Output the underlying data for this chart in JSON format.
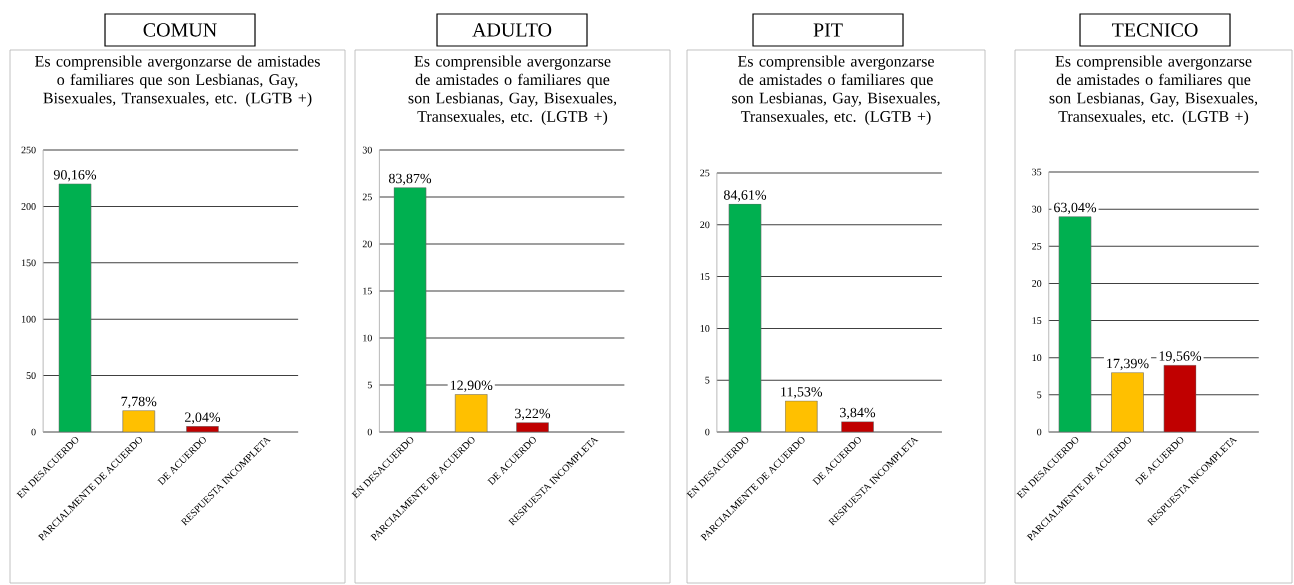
{
  "chart_data": [
    {
      "type": "bar",
      "title": "COMUN",
      "subtitle": "Es comprensible avergonzarse de amistades o familiares que son Lesbianas, Gay, Bisexuales, Transexuales, etc. (LGTB +)",
      "categories": [
        "EN DESACUERDO",
        "PARCIALMENTE DE ACUERDO",
        "DE ACUERDO",
        "RESPUESTA INCOMPLETA"
      ],
      "values": [
        220,
        19,
        5,
        null
      ],
      "colors": [
        "#00b050",
        "#ffc000",
        "#c00000",
        null
      ],
      "ylim": [
        0,
        250
      ],
      "yticks": [
        0,
        50,
        100,
        150,
        200,
        250
      ],
      "grid": "y",
      "annotations": [
        {
          "text": "90,16%",
          "x": "EN DESACUERDO",
          "y": 220
        },
        {
          "text": "7,78%",
          "x": "PARCIALMENTE DE ACUERDO",
          "y": 19
        },
        {
          "text": "2,04%",
          "x": "DE ACUERDO",
          "y": 5
        }
      ]
    },
    {
      "type": "bar",
      "title": "ADULTO",
      "subtitle": "Es comprensible avergonzarse de amistades o familiares que son Lesbianas, Gay, Bisexuales, Transexuales, etc. (LGTB +)",
      "categories": [
        "EN DESACUERDO",
        "PARCIALMENTE DE ACUERDO",
        "DE ACUERDO",
        "RESPUESTA INCOMPLETA"
      ],
      "values": [
        26,
        4,
        1,
        null
      ],
      "colors": [
        "#00b050",
        "#ffc000",
        "#c00000",
        null
      ],
      "ylim": [
        0,
        30
      ],
      "yticks": [
        0,
        5,
        10,
        15,
        20,
        25,
        30
      ],
      "grid": "y",
      "annotations": [
        {
          "text": "83,87%",
          "x": "EN DESACUERDO",
          "y": 26
        },
        {
          "text": "12,90%",
          "x": "PARCIALMENTE DE ACUERDO",
          "y": 4
        },
        {
          "text": "3,22%",
          "x": "DE ACUERDO",
          "y": 1
        }
      ]
    },
    {
      "type": "bar",
      "title": "PIT",
      "subtitle": "Es comprensible avergonzarse de amistades o familiares que son Lesbianas, Gay, Bisexuales, Transexuales, etc. (LGTB +)",
      "categories": [
        "EN DESACUERDO",
        "PARCIALMENTE DE ACUERDO",
        "DE ACUERDO",
        "RESPUESTA INCOMPLETA"
      ],
      "values": [
        22,
        3,
        1,
        null
      ],
      "colors": [
        "#00b050",
        "#ffc000",
        "#c00000",
        null
      ],
      "ylim": [
        0,
        25
      ],
      "yticks": [
        0,
        5,
        10,
        15,
        20,
        25
      ],
      "grid": "y",
      "annotations": [
        {
          "text": "84,61%",
          "x": "EN DESACUERDO",
          "y": 22
        },
        {
          "text": "11,53%",
          "x": "PARCIALMENTE DE ACUERDO",
          "y": 3
        },
        {
          "text": "3,84%",
          "x": "DE ACUERDO",
          "y": 1
        }
      ]
    },
    {
      "type": "bar",
      "title": "TECNICO",
      "subtitle": "Es comprensible avergonzarse de amistades o familiares que son Lesbianas, Gay, Bisexuales, Transexuales, etc. (LGTB +)",
      "categories": [
        "EN DESACUERDO",
        "PARCIALMENTE DE ACUERDO",
        "DE ACUERDO",
        "RESPUESTA INCOMPLETA"
      ],
      "values": [
        29,
        8,
        9,
        null
      ],
      "colors": [
        "#00b050",
        "#ffc000",
        "#c00000",
        null
      ],
      "ylim": [
        0,
        35
      ],
      "yticks": [
        0,
        5,
        10,
        15,
        20,
        25,
        30,
        35
      ],
      "grid": "y",
      "annotations": [
        {
          "text": "63,04%",
          "x": "EN DESACUERDO",
          "y": 29
        },
        {
          "text": "17,39%",
          "x": "PARCIALMENTE DE ACUERDO",
          "y": 8
        },
        {
          "text": "19,56%",
          "x": "DE ACUERDO",
          "y": 9
        }
      ]
    }
  ]
}
